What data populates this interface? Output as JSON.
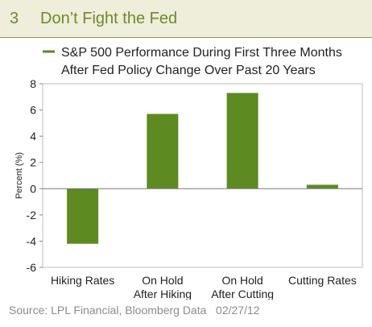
{
  "figure": {
    "number": "3",
    "title": "Don’t Fight the Fed"
  },
  "colors": {
    "bar": "#5e8a22",
    "header_bg": "#eeeedb",
    "title": "#6f8a2b",
    "source": "#8c8c8c"
  },
  "source": "Source: LPL Financial, Bloomberg Data   02/27/12",
  "chart_data": {
    "type": "bar",
    "title": "S&P 500 Performance During First Three Months After Fed Policy Change Over Past 20 Years",
    "title_lines": [
      "S&P 500 Performance During First Three Months",
      "After Fed Policy Change Over Past 20 Years"
    ],
    "ylabel": "Percent (%)",
    "xlabel": "",
    "ylim": [
      -6,
      8
    ],
    "yticks": [
      8,
      6,
      4,
      2,
      0,
      -2,
      -4,
      -6
    ],
    "categories": [
      [
        "Hiking Rates"
      ],
      [
        "On Hold",
        "After Hiking"
      ],
      [
        "On Hold",
        "After Cutting"
      ],
      [
        "Cutting Rates"
      ]
    ],
    "series": [
      {
        "values": [
          -4.2,
          5.7,
          7.3,
          0.3
        ]
      }
    ],
    "legend": "top-center",
    "grid": false
  }
}
